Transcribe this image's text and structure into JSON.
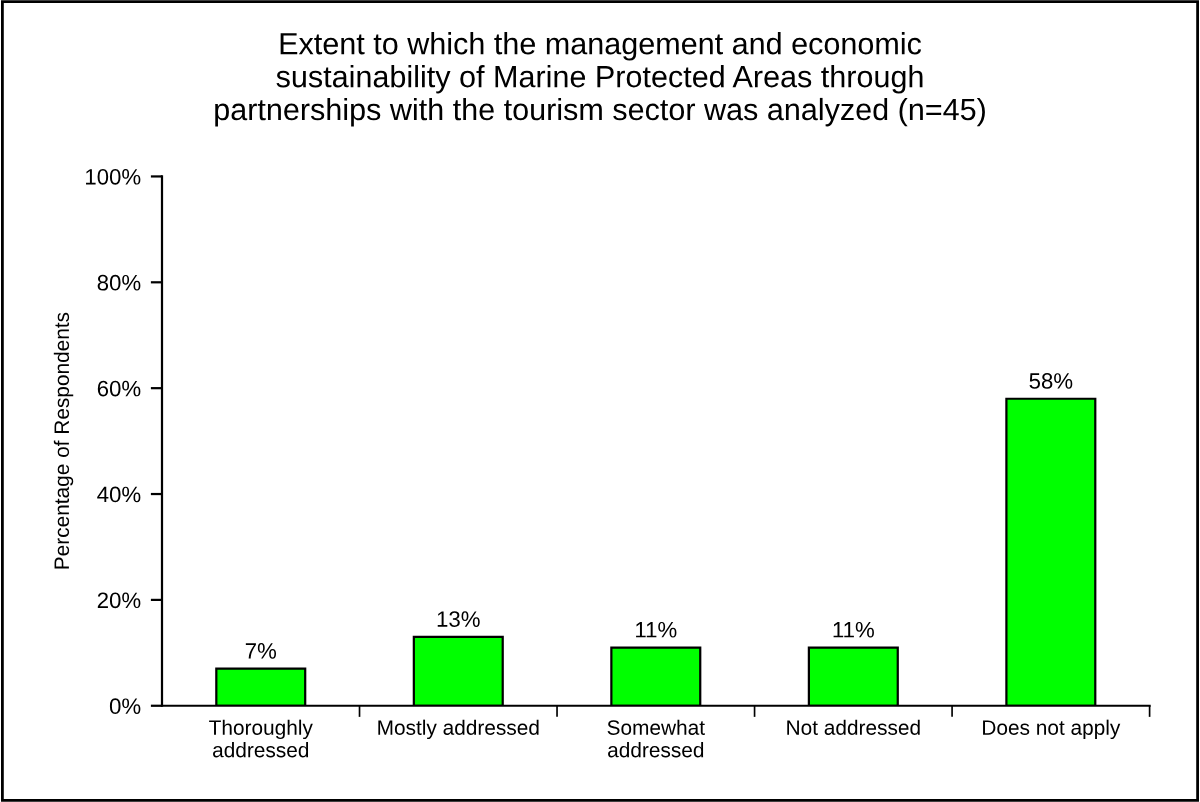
{
  "chart_data": {
    "type": "bar",
    "title": "Extent to which the management and economic\nsustainability of Marine Protected Areas through\npartnerships with the tourism sector was analyzed (n=45)",
    "ylabel": "Percentage of Respondents",
    "categories": [
      "Thoroughly\naddressed",
      "Mostly addressed",
      "Somewhat\naddressed",
      "Not addressed",
      "Does not apply"
    ],
    "values": [
      7,
      13,
      11,
      11,
      58
    ],
    "value_labels": [
      "7%",
      "13%",
      "11%",
      "11%",
      "58%"
    ],
    "color": "#00ff00",
    "ylim": [
      0,
      100
    ],
    "yticks": [
      {
        "value": 0,
        "label": "0%"
      },
      {
        "value": 20,
        "label": "20%"
      },
      {
        "value": 40,
        "label": "40%"
      },
      {
        "value": 60,
        "label": "60%"
      },
      {
        "value": 80,
        "label": "80%"
      },
      {
        "value": 100,
        "label": "100%"
      }
    ],
    "grid": false,
    "legend": false
  }
}
